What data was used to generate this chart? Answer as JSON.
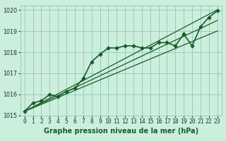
{
  "title": "Graphe pression niveau de la mer (hPa)",
  "bg_color": "#cceedd",
  "grid_color": "#99ccbb",
  "line_color": "#1a5c2a",
  "xlim": [
    -0.5,
    23.5
  ],
  "ylim": [
    1015,
    1020.2
  ],
  "xticks": [
    0,
    1,
    2,
    3,
    4,
    5,
    6,
    7,
    8,
    9,
    10,
    11,
    12,
    13,
    14,
    15,
    16,
    17,
    18,
    19,
    20,
    21,
    22,
    23
  ],
  "yticks": [
    1015,
    1016,
    1017,
    1018,
    1019,
    1020
  ],
  "series_main": {
    "x": [
      0,
      1,
      2,
      3,
      4,
      5,
      6,
      7,
      8,
      9,
      10,
      11,
      12,
      13,
      14,
      15,
      16,
      17,
      18,
      19,
      20,
      21,
      22,
      23
    ],
    "y": [
      1015.2,
      1015.6,
      1015.7,
      1016.0,
      1015.9,
      1016.15,
      1016.3,
      1016.75,
      1017.55,
      1017.9,
      1018.2,
      1018.2,
      1018.3,
      1018.3,
      1018.2,
      1018.2,
      1018.45,
      1018.45,
      1018.3,
      1018.85,
      1018.3,
      1019.2,
      1019.65,
      1019.95
    ]
  },
  "series_linear": [
    {
      "x": [
        0,
        23
      ],
      "y": [
        1015.2,
        1020.0
      ]
    },
    {
      "x": [
        0,
        23
      ],
      "y": [
        1015.2,
        1019.5
      ]
    },
    {
      "x": [
        0,
        23
      ],
      "y": [
        1015.2,
        1019.0
      ]
    }
  ],
  "tick_fontsize": 5.8,
  "label_fontsize": 7.0,
  "marker_size": 2.8,
  "linewidth_main": 1.2,
  "linewidth_linear": 0.9
}
